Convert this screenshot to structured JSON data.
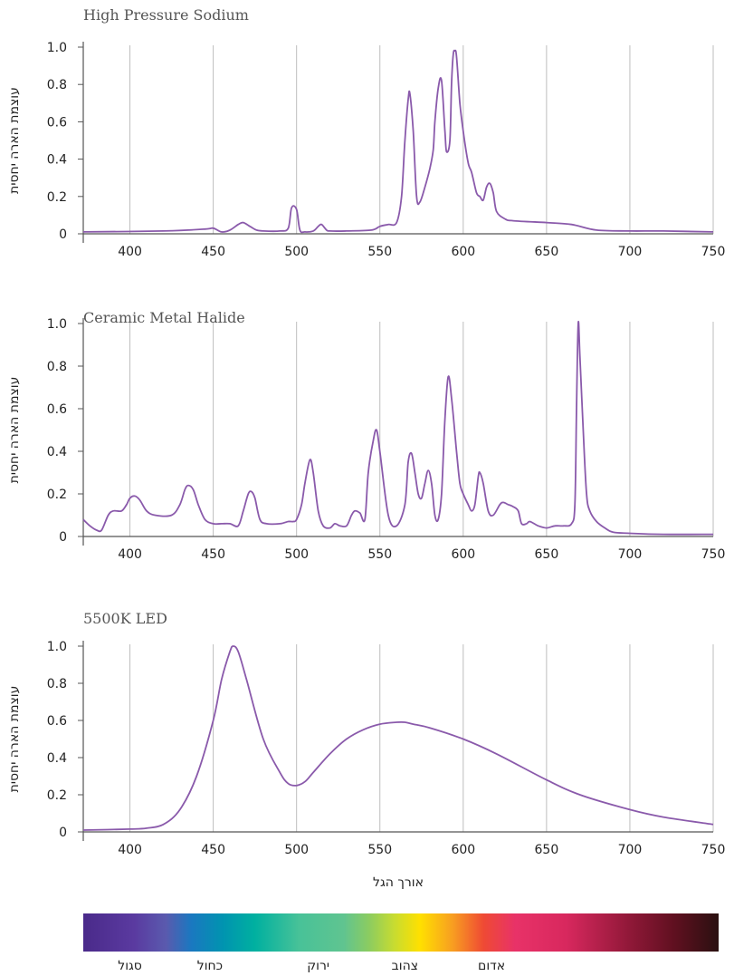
{
  "chart_data": [
    {
      "type": "line",
      "title": "High Pressure Sodium",
      "ylabel": "עוצמת הארה יחסית",
      "xlim": [
        372,
        750
      ],
      "ylim": [
        0,
        1.0
      ],
      "xticks": [
        400,
        450,
        500,
        550,
        600,
        650,
        700,
        750
      ],
      "yticks": [
        0,
        0.2,
        0.4,
        0.6,
        0.8,
        1.0
      ],
      "ytick_labels": [
        "0",
        "0.2",
        "0.4",
        "0.6",
        "0.8",
        "1.0"
      ],
      "grid": "vertical",
      "line_color": "#8a5aab",
      "x": [
        372,
        420,
        445,
        450,
        455,
        460,
        465,
        468,
        472,
        476,
        480,
        490,
        495,
        497,
        500,
        502,
        505,
        510,
        513,
        515,
        518,
        520,
        530,
        545,
        550,
        555,
        560,
        563,
        565,
        567,
        568,
        570,
        572,
        574,
        577,
        580,
        582,
        583,
        585,
        587,
        589,
        590,
        592,
        593,
        594,
        595,
        596,
        598,
        600,
        603,
        605,
        608,
        610,
        612,
        614,
        616,
        618,
        620,
        625,
        630,
        650,
        665,
        680,
        700,
        720,
        750
      ],
      "y": [
        0.01,
        0.015,
        0.025,
        0.03,
        0.01,
        0.02,
        0.05,
        0.06,
        0.04,
        0.02,
        0.015,
        0.015,
        0.03,
        0.14,
        0.13,
        0.02,
        0.01,
        0.015,
        0.04,
        0.05,
        0.02,
        0.015,
        0.015,
        0.02,
        0.04,
        0.05,
        0.06,
        0.2,
        0.5,
        0.72,
        0.75,
        0.55,
        0.2,
        0.17,
        0.25,
        0.35,
        0.45,
        0.6,
        0.78,
        0.82,
        0.55,
        0.44,
        0.5,
        0.8,
        0.96,
        0.98,
        0.95,
        0.7,
        0.55,
        0.38,
        0.33,
        0.22,
        0.2,
        0.18,
        0.25,
        0.27,
        0.22,
        0.12,
        0.08,
        0.07,
        0.06,
        0.05,
        0.02,
        0.015,
        0.015,
        0.01
      ]
    },
    {
      "type": "line",
      "title": "Ceramic Metal Halide",
      "ylabel": "עוצמת הארה יחסית",
      "xlim": [
        372,
        750
      ],
      "ylim": [
        0,
        1.0
      ],
      "xticks": [
        400,
        450,
        500,
        550,
        600,
        650,
        700,
        750
      ],
      "yticks": [
        0,
        0.2,
        0.4,
        0.6,
        0.8,
        1.0
      ],
      "ytick_labels": [
        "0",
        "0.2",
        "0.4",
        "0.6",
        "0.8",
        "1.0"
      ],
      "grid": "vertical",
      "line_color": "#8a5aab",
      "x": [
        372,
        376,
        380,
        383,
        387,
        390,
        395,
        398,
        400,
        403,
        406,
        410,
        415,
        425,
        430,
        433,
        435,
        438,
        441,
        445,
        450,
        455,
        460,
        465,
        468,
        471,
        473,
        475,
        478,
        482,
        490,
        495,
        498,
        500,
        503,
        505,
        508,
        510,
        513,
        516,
        520,
        523,
        526,
        530,
        533,
        535,
        538,
        541,
        543,
        546,
        548,
        550,
        555,
        560,
        565,
        567,
        569,
        571,
        573,
        575,
        577,
        579,
        581,
        583,
        585,
        587,
        589,
        591,
        593,
        596,
        598,
        600,
        603,
        605,
        607,
        609,
        610,
        612,
        615,
        618,
        622,
        624,
        627,
        630,
        633,
        635,
        638,
        640,
        645,
        650,
        655,
        660,
        665,
        667,
        668,
        669,
        670,
        672,
        674,
        676,
        680,
        685,
        690,
        700,
        720,
        750
      ],
      "y": [
        0.08,
        0.05,
        0.03,
        0.03,
        0.1,
        0.12,
        0.12,
        0.15,
        0.18,
        0.19,
        0.17,
        0.12,
        0.1,
        0.1,
        0.15,
        0.22,
        0.24,
        0.22,
        0.15,
        0.08,
        0.06,
        0.06,
        0.06,
        0.05,
        0.12,
        0.2,
        0.21,
        0.18,
        0.08,
        0.06,
        0.06,
        0.07,
        0.07,
        0.08,
        0.15,
        0.25,
        0.36,
        0.3,
        0.12,
        0.05,
        0.04,
        0.06,
        0.05,
        0.05,
        0.1,
        0.12,
        0.11,
        0.08,
        0.3,
        0.45,
        0.5,
        0.4,
        0.1,
        0.05,
        0.15,
        0.35,
        0.39,
        0.3,
        0.2,
        0.18,
        0.25,
        0.31,
        0.25,
        0.1,
        0.08,
        0.2,
        0.55,
        0.75,
        0.65,
        0.4,
        0.25,
        0.2,
        0.15,
        0.12,
        0.15,
        0.28,
        0.3,
        0.25,
        0.12,
        0.1,
        0.15,
        0.16,
        0.15,
        0.14,
        0.12,
        0.06,
        0.06,
        0.07,
        0.05,
        0.04,
        0.05,
        0.05,
        0.06,
        0.15,
        0.6,
        1.0,
        0.85,
        0.5,
        0.2,
        0.12,
        0.07,
        0.04,
        0.02,
        0.015,
        0.01,
        0.01
      ]
    },
    {
      "type": "line",
      "title": "5500K LED",
      "xlabel": "אורך הגל",
      "ylabel": "עוצמת הארה יחסית",
      "xlim": [
        372,
        750
      ],
      "ylim": [
        0,
        1.0
      ],
      "xticks": [
        400,
        450,
        500,
        550,
        600,
        650,
        700,
        750
      ],
      "yticks": [
        0,
        0.2,
        0.4,
        0.6,
        0.8,
        1.0
      ],
      "ytick_labels": [
        "0",
        "0.2",
        "0.4",
        "0.6",
        "0.8",
        "1.0"
      ],
      "grid": "vertical",
      "line_color": "#8a5aab",
      "x": [
        372,
        400,
        410,
        420,
        430,
        440,
        450,
        455,
        460,
        462,
        465,
        470,
        480,
        490,
        495,
        500,
        505,
        510,
        520,
        530,
        540,
        550,
        560,
        565,
        570,
        580,
        600,
        620,
        650,
        670,
        700,
        720,
        750
      ],
      "y": [
        0.01,
        0.015,
        0.02,
        0.04,
        0.12,
        0.3,
        0.6,
        0.82,
        0.97,
        1.0,
        0.97,
        0.82,
        0.5,
        0.32,
        0.26,
        0.25,
        0.27,
        0.32,
        0.42,
        0.5,
        0.55,
        0.58,
        0.59,
        0.59,
        0.58,
        0.56,
        0.5,
        0.42,
        0.28,
        0.2,
        0.12,
        0.08,
        0.04
      ]
    }
  ],
  "spectrum": {
    "stops": [
      {
        "pos": 0.0,
        "color": "#4a2a8a"
      },
      {
        "pos": 0.08,
        "color": "#5a3aa0"
      },
      {
        "pos": 0.13,
        "color": "#5a5aae"
      },
      {
        "pos": 0.17,
        "color": "#1a78c0"
      },
      {
        "pos": 0.22,
        "color": "#0094b0"
      },
      {
        "pos": 0.27,
        "color": "#00b0a0"
      },
      {
        "pos": 0.34,
        "color": "#48c298"
      },
      {
        "pos": 0.41,
        "color": "#60c490"
      },
      {
        "pos": 0.45,
        "color": "#8ccc60"
      },
      {
        "pos": 0.49,
        "color": "#c8dc30"
      },
      {
        "pos": 0.53,
        "color": "#ffe000"
      },
      {
        "pos": 0.58,
        "color": "#f8a020"
      },
      {
        "pos": 0.63,
        "color": "#ef4a34"
      },
      {
        "pos": 0.68,
        "color": "#e83268"
      },
      {
        "pos": 0.76,
        "color": "#d8285e"
      },
      {
        "pos": 0.86,
        "color": "#901838"
      },
      {
        "pos": 0.93,
        "color": "#601020"
      },
      {
        "pos": 1.0,
        "color": "#2a1010"
      }
    ],
    "labels": [
      {
        "text": "סגול",
        "x": 400
      },
      {
        "text": "כחול",
        "x": 448
      },
      {
        "text": "ירוק",
        "x": 513
      },
      {
        "text": "צהוב",
        "x": 565
      },
      {
        "text": "אדום",
        "x": 617
      }
    ]
  }
}
